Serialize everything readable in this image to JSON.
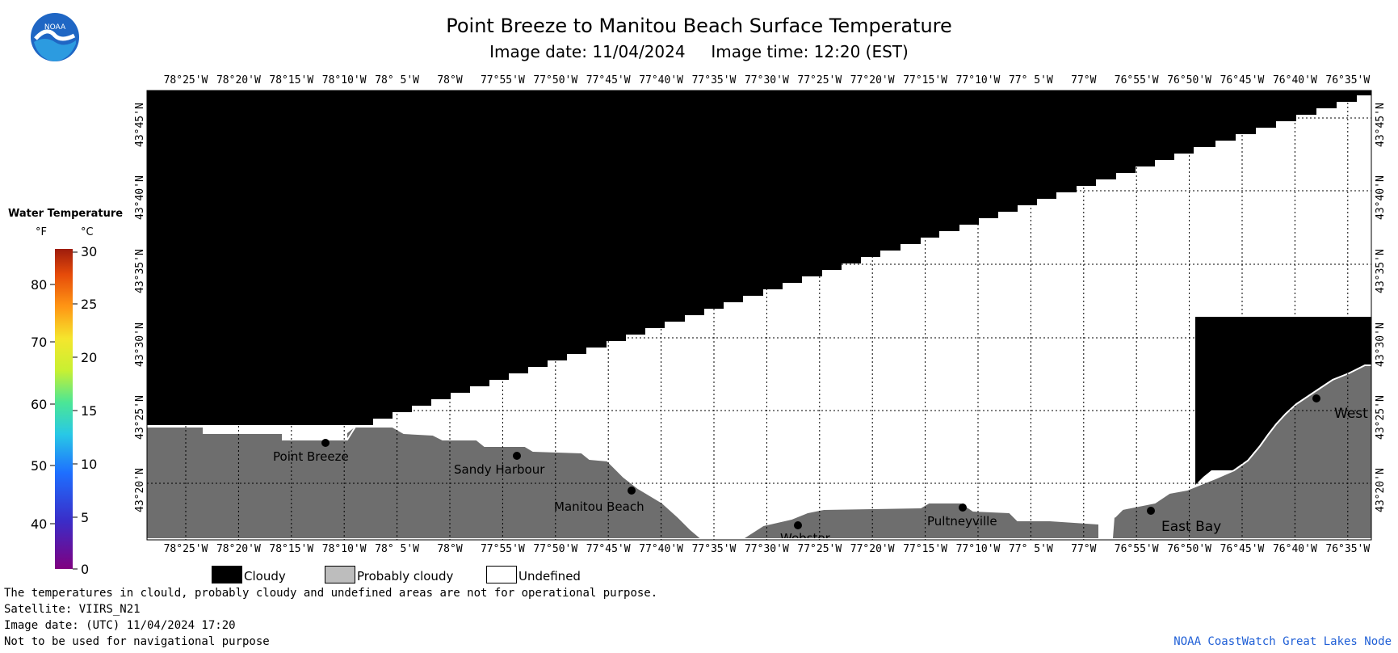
{
  "header": {
    "title": "Point Breeze to Manitou Beach Surface Temperature",
    "image_date_label": "Image date: 11/04/2024",
    "image_time_label": "Image time: 12:20 (EST)"
  },
  "logo": {
    "text": "NOAA"
  },
  "map": {
    "lon_labels": [
      "78°25'W",
      "78°20'W",
      "78°15'W",
      "78°10'W",
      "78° 5'W",
      "78°W",
      "77°55'W",
      "77°50'W",
      "77°45'W",
      "77°40'W",
      "77°35'W",
      "77°30'W",
      "77°25'W",
      "77°20'W",
      "77°15'W",
      "77°10'W",
      "77° 5'W",
      "77°W",
      "76°55'W",
      "76°50'W",
      "76°45'W",
      "76°40'W",
      "76°35'W"
    ],
    "lat_labels": [
      "43°45'N",
      "43°40'N",
      "43°35'N",
      "43°30'N",
      "43°25'N",
      "43°20'N"
    ],
    "places": [
      {
        "name": "Point Breeze"
      },
      {
        "name": "Sandy Harbour"
      },
      {
        "name": "Manitou Beach"
      },
      {
        "name": "Webster"
      },
      {
        "name": "Pultneyville"
      },
      {
        "name": "East Bay"
      },
      {
        "name": "West"
      }
    ],
    "colors": {
      "cloudy": "#000000",
      "probably_cloudy": "#6e6e6e",
      "undefined": "#ffffff",
      "grid": "#000000"
    }
  },
  "colorbar": {
    "title": "Water Temperature",
    "unit_f": "°F",
    "unit_c": "°C",
    "fahrenheit_ticks": [
      "80",
      "70",
      "60",
      "50",
      "40"
    ],
    "celsius_ticks": [
      "30",
      "25",
      "20",
      "15",
      "10",
      "5",
      "0"
    ],
    "gradient_colors": [
      "#800080",
      "#3a2dc8",
      "#1e6fff",
      "#28c8e6",
      "#4be696",
      "#c8f032",
      "#f5e62d",
      "#ff9614",
      "#e64b0a",
      "#9e1c0c"
    ]
  },
  "legend": {
    "cloudy": "Cloudy",
    "probably_cloudy": "Probably cloudy",
    "undefined": "Undefined"
  },
  "footer": {
    "line1": "The temperatures in clould, probably cloudy and undefined areas are not for operational purpose.",
    "line2": "Satellite: VIIRS_N21",
    "line3": "Image date: (UTC) 11/04/2024  17:20",
    "line4": "Not to be used for navigational purpose",
    "credit": "NOAA CoastWatch Great Lakes Node"
  }
}
